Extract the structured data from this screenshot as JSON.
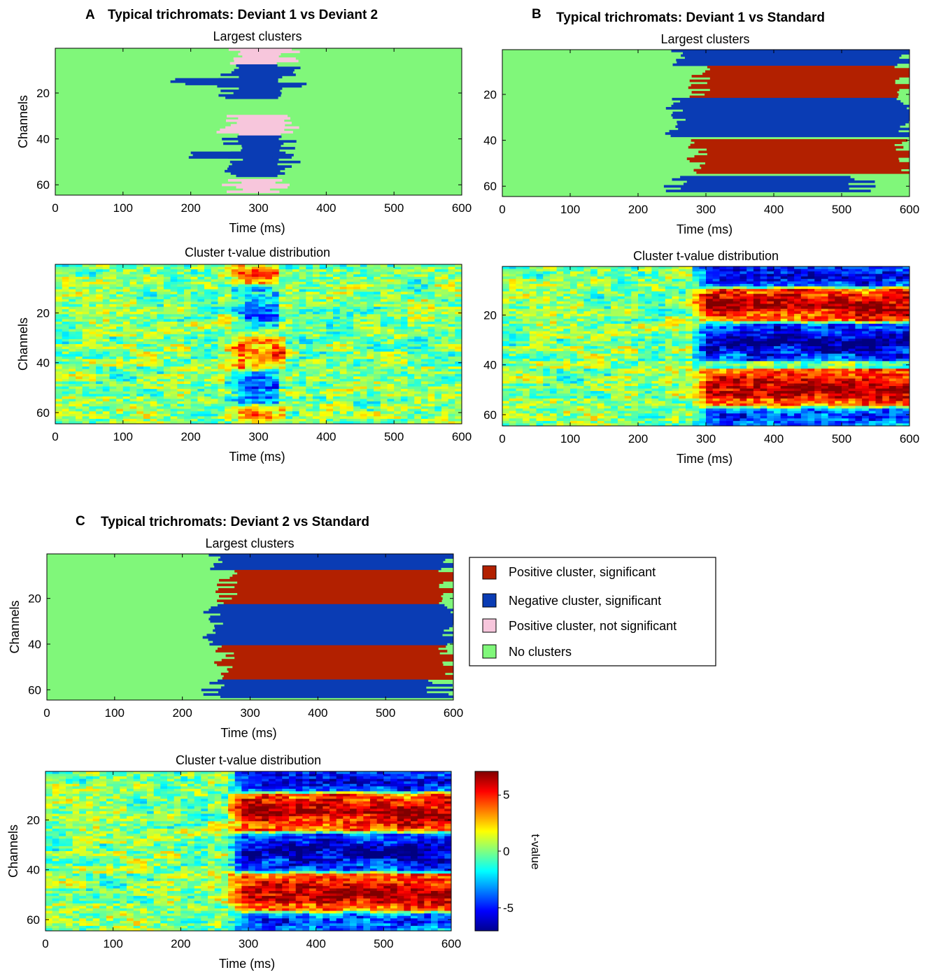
{
  "figure": {
    "panels": [
      {
        "letter": "A",
        "title": "Typical trichromats: Deviant 1 vs Deviant 2",
        "cluster_title": "Largest clusters",
        "tvalue_title": "Cluster t-value distribution"
      },
      {
        "letter": "B",
        "title": "Typical trichromats: Deviant 1 vs Standard",
        "cluster_title": "Largest clusters",
        "tvalue_title": "Cluster t-value distribution"
      },
      {
        "letter": "C",
        "title": "Typical trichromats: Deviant 2 vs Standard",
        "cluster_title": "Largest clusters",
        "tvalue_title": "Cluster t-value distribution"
      }
    ],
    "legend": {
      "items": [
        {
          "label": "Positive cluster, significant",
          "color": "#b22000"
        },
        {
          "label": "Negative  cluster, significant",
          "color": "#0a3cb4"
        },
        {
          "label": "Positive cluster, not significant",
          "color": "#f7c6dc"
        },
        {
          "label": "No clusters",
          "color": "#80f77a"
        }
      ]
    },
    "colorbar": {
      "label": "t-value",
      "ticks": [
        "5",
        "0",
        "-5"
      ]
    }
  },
  "chart_data": [
    {
      "panel": "A",
      "type": "heatmap",
      "title": "Largest clusters",
      "xlabel": "Time (ms)",
      "ylabel": "Channels",
      "xlim": [
        0,
        600
      ],
      "ylim": [
        64,
        1
      ],
      "xticks": [
        "0",
        "100",
        "200",
        "300",
        "400",
        "500",
        "600"
      ],
      "yticks": [
        "20",
        "40",
        "60"
      ],
      "categories": [
        "none",
        "pos_sig",
        "neg_sig",
        "pos_nonsig"
      ],
      "clusters": [
        {
          "kind": "pos_nonsig",
          "channels": [
            1,
            7
          ],
          "ms": [
            262,
            345
          ]
        },
        {
          "kind": "neg_sig",
          "channels": [
            8,
            22
          ],
          "ms": [
            255,
            350
          ]
        },
        {
          "kind": "neg_sig",
          "channels": [
            14,
            16
          ],
          "ms": [
            188,
            300
          ]
        },
        {
          "kind": "pos_nonsig",
          "channels": [
            30,
            38
          ],
          "ms": [
            255,
            345
          ]
        },
        {
          "kind": "neg_sig",
          "channels": [
            39,
            56
          ],
          "ms": [
            260,
            345
          ]
        },
        {
          "kind": "neg_sig",
          "channels": [
            46,
            48
          ],
          "ms": [
            188,
            300
          ]
        },
        {
          "kind": "pos_nonsig",
          "channels": [
            58,
            63
          ],
          "ms": [
            262,
            330
          ]
        }
      ]
    },
    {
      "panel": "A",
      "type": "heatmap",
      "title": "Cluster t-value distribution",
      "xlabel": "Time (ms)",
      "ylabel": "Channels",
      "xlim": [
        0,
        600
      ],
      "ylim": [
        64,
        1
      ],
      "xticks": [
        "0",
        "100",
        "200",
        "300",
        "400",
        "500",
        "600"
      ],
      "yticks": [
        "20",
        "40",
        "60"
      ],
      "value_range": [
        -7,
        7
      ],
      "features": [
        {
          "sign": "pos",
          "channels": [
            1,
            8
          ],
          "ms": [
            265,
            310
          ],
          "peak": 4
        },
        {
          "sign": "neg",
          "channels": [
            10,
            26
          ],
          "ms": [
            270,
            310
          ],
          "peak": -4
        },
        {
          "sign": "pos",
          "channels": [
            30,
            42
          ],
          "ms": [
            260,
            320
          ],
          "peak": 4
        },
        {
          "sign": "neg",
          "channels": [
            44,
            56
          ],
          "ms": [
            260,
            310
          ],
          "peak": -4
        },
        {
          "sign": "pos",
          "channels": [
            58,
            64
          ],
          "ms": [
            265,
            320
          ],
          "peak": 3
        }
      ]
    },
    {
      "panel": "B",
      "type": "heatmap",
      "title": "Largest clusters",
      "xlabel": "Time (ms)",
      "ylabel": "Channels",
      "xlim": [
        0,
        600
      ],
      "ylim": [
        64,
        1
      ],
      "xticks": [
        "0",
        "100",
        "200",
        "300",
        "400",
        "500",
        "600"
      ],
      "yticks": [
        "20",
        "40",
        "60"
      ],
      "categories": [
        "none",
        "pos_sig",
        "neg_sig",
        "pos_nonsig"
      ],
      "clusters": [
        {
          "kind": "neg_sig",
          "channels": [
            1,
            7
          ],
          "ms": [
            255,
            600
          ]
        },
        {
          "kind": "pos_sig",
          "channels": [
            8,
            21
          ],
          "ms": [
            290,
            600
          ]
        },
        {
          "kind": "neg_sig",
          "channels": [
            22,
            38
          ],
          "ms": [
            255,
            600
          ]
        },
        {
          "kind": "pos_sig",
          "channels": [
            40,
            54
          ],
          "ms": [
            285,
            600
          ]
        },
        {
          "kind": "neg_sig",
          "channels": [
            56,
            62
          ],
          "ms": [
            255,
            530
          ]
        }
      ]
    },
    {
      "panel": "B",
      "type": "heatmap",
      "title": "Cluster t-value distribution",
      "xlabel": "Time (ms)",
      "ylabel": "Channels",
      "xlim": [
        0,
        600
      ],
      "ylim": [
        64,
        1
      ],
      "xticks": [
        "0",
        "100",
        "200",
        "300",
        "400",
        "500",
        "600"
      ],
      "yticks": [
        "20",
        "40",
        "60"
      ],
      "value_range": [
        -7,
        7
      ],
      "features": [
        {
          "sign": "neg",
          "channels": [
            1,
            8
          ],
          "ms": [
            290,
            600
          ],
          "peak": -6
        },
        {
          "sign": "pos",
          "channels": [
            10,
            22
          ],
          "ms": [
            290,
            600
          ],
          "peak": 6.5
        },
        {
          "sign": "neg",
          "channels": [
            24,
            38
          ],
          "ms": [
            290,
            600
          ],
          "peak": -6.5
        },
        {
          "sign": "pos",
          "channels": [
            42,
            56
          ],
          "ms": [
            290,
            600
          ],
          "peak": 6.5
        },
        {
          "sign": "neg",
          "channels": [
            58,
            64
          ],
          "ms": [
            290,
            600
          ],
          "peak": -5
        }
      ]
    },
    {
      "panel": "C",
      "type": "heatmap",
      "title": "Largest clusters",
      "xlabel": "Time (ms)",
      "ylabel": "Channels",
      "xlim": [
        0,
        600
      ],
      "ylim": [
        64,
        1
      ],
      "xticks": [
        "0",
        "100",
        "200",
        "300",
        "400",
        "500",
        "600"
      ],
      "yticks": [
        "20",
        "40",
        "60"
      ],
      "categories": [
        "none",
        "pos_sig",
        "neg_sig",
        "pos_nonsig"
      ],
      "clusters": [
        {
          "kind": "neg_sig",
          "channels": [
            1,
            7
          ],
          "ms": [
            245,
            600
          ]
        },
        {
          "kind": "pos_sig",
          "channels": [
            8,
            22
          ],
          "ms": [
            265,
            600
          ]
        },
        {
          "kind": "neg_sig",
          "channels": [
            23,
            40
          ],
          "ms": [
            245,
            600
          ]
        },
        {
          "kind": "pos_sig",
          "channels": [
            41,
            55
          ],
          "ms": [
            260,
            600
          ]
        },
        {
          "kind": "neg_sig",
          "channels": [
            56,
            63
          ],
          "ms": [
            245,
            580
          ]
        }
      ]
    },
    {
      "panel": "C",
      "type": "heatmap",
      "title": "Cluster t-value distribution",
      "xlabel": "Time (ms)",
      "ylabel": "Channels",
      "xlim": [
        0,
        600
      ],
      "ylim": [
        64,
        1
      ],
      "xticks": [
        "0",
        "100",
        "200",
        "300",
        "400",
        "500",
        "600"
      ],
      "yticks": [
        "20",
        "40",
        "60"
      ],
      "value_range": [
        -7,
        7
      ],
      "features": [
        {
          "sign": "neg",
          "channels": [
            1,
            8
          ],
          "ms": [
            280,
            600
          ],
          "peak": -6
        },
        {
          "sign": "pos",
          "channels": [
            10,
            24
          ],
          "ms": [
            280,
            600
          ],
          "peak": 6.5
        },
        {
          "sign": "neg",
          "channels": [
            26,
            40
          ],
          "ms": [
            280,
            600
          ],
          "peak": -6.5
        },
        {
          "sign": "pos",
          "channels": [
            42,
            56
          ],
          "ms": [
            280,
            600
          ],
          "peak": 6.5
        },
        {
          "sign": "neg",
          "channels": [
            58,
            64
          ],
          "ms": [
            280,
            600
          ],
          "peak": -5
        }
      ]
    }
  ]
}
